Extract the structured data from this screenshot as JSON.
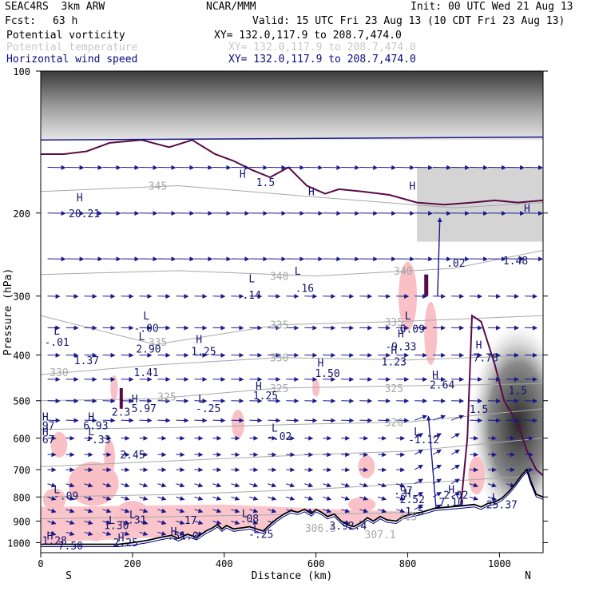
{
  "header": {
    "model": "SEAC4RS  3km ARW",
    "org": "NCAR/MMM",
    "init": "Init: 00 UTC Wed 21 Aug 13",
    "fcst_label": "Fcst:",
    "fcst_value": "63 h",
    "valid": "Valid: 15 UTC Fri 23 Aug 13 (10 CDT Fri 23 Aug 13)"
  },
  "fields": [
    {
      "name": "Potential vorticity",
      "xy": "XY= 132.0,117.9 to 208.7,474.0",
      "color": "#000000"
    },
    {
      "name": "Potential temperature",
      "xy": "XY= 132.0,117.9 to 208.7,474.0",
      "color": "#bdbdbd"
    },
    {
      "name": "Horizontal wind speed",
      "xy": "XY= 132.0,117.9 to 208.7,474.0",
      "color": "#0a0a80"
    }
  ],
  "colors": {
    "pv_shading_pink": "#f9c0c6",
    "pv_contour": "#5a0a4a",
    "theta_contour": "#a8a8a8",
    "wind_vector": "#1a1a8c",
    "terrain": "#000000",
    "tropopause_gray": "#555555"
  },
  "chart_data": {
    "type": "cross-section",
    "xlabel": "Distance (km)",
    "ylabel": "Pressure (hPa)",
    "xlim": [
      0,
      1095
    ],
    "ylim": [
      1050,
      100
    ],
    "y_scale": "log",
    "x_ticks": [
      0,
      200,
      400,
      600,
      800,
      1000
    ],
    "y_ticks": [
      100,
      200,
      300,
      400,
      500,
      600,
      700,
      800,
      900,
      1000
    ],
    "x_end_labels": {
      "left": "S",
      "right": "N"
    },
    "theta_contours": [
      {
        "label": "345",
        "x": 255,
        "p": 175
      },
      {
        "label": "340",
        "x": 520,
        "p": 272
      },
      {
        "label": "340",
        "x": 790,
        "p": 265
      },
      {
        "label": "335",
        "x": 255,
        "p": 375
      },
      {
        "label": "335",
        "x": 520,
        "p": 345
      },
      {
        "label": "335",
        "x": 770,
        "p": 340
      },
      {
        "label": "330",
        "x": 40,
        "p": 435
      },
      {
        "label": "330",
        "x": 520,
        "p": 405
      },
      {
        "label": "325",
        "x": 275,
        "p": 490
      },
      {
        "label": "325",
        "x": 520,
        "p": 470
      },
      {
        "label": "325",
        "x": 770,
        "p": 470
      },
      {
        "label": "320",
        "x": 770,
        "p": 555
      },
      {
        "label": "315",
        "x": 800,
        "p": 880
      },
      {
        "label": "306.5",
        "x": 610,
        "p": 930
      },
      {
        "label": "307.1",
        "x": 740,
        "p": 960
      }
    ],
    "annotations": [
      {
        "text": "H",
        "x": 85,
        "p": 185
      },
      {
        "text": "20.21",
        "x": 95,
        "p": 200
      },
      {
        "text": "L",
        "x": 460,
        "p": 275
      },
      {
        "text": ".14",
        "x": 460,
        "p": 298
      },
      {
        "text": "L",
        "x": 560,
        "p": 265
      },
      {
        "text": ".16",
        "x": 575,
        "p": 288
      },
      {
        "text": "L",
        "x": 230,
        "p": 330
      },
      {
        "text": "-.00",
        "x": 230,
        "p": 350
      },
      {
        "text": "L",
        "x": 35,
        "p": 355
      },
      {
        "text": "-.01",
        "x": 35,
        "p": 375
      },
      {
        "text": "H",
        "x": 345,
        "p": 370
      },
      {
        "text": "1.25",
        "x": 355,
        "p": 392
      },
      {
        "text": "L",
        "x": 220,
        "p": 365
      },
      {
        "text": "2.90",
        "x": 235,
        "p": 388
      },
      {
        "text": "1.37",
        "x": 100,
        "p": 410
      },
      {
        "text": "1.41",
        "x": 230,
        "p": 435
      },
      {
        "text": "H",
        "x": 610,
        "p": 415
      },
      {
        "text": "1.50",
        "x": 625,
        "p": 437
      },
      {
        "text": "H",
        "x": 785,
        "p": 360
      },
      {
        "text": "-9.33",
        "x": 785,
        "p": 383
      },
      {
        "text": "H",
        "x": 770,
        "p": 390
      },
      {
        "text": "1.23",
        "x": 770,
        "p": 413
      },
      {
        "text": "L",
        "x": 800,
        "p": 330
      },
      {
        "text": "6.09",
        "x": 810,
        "p": 352
      },
      {
        "text": "H",
        "x": 955,
        "p": 380
      },
      {
        "text": "7.78",
        "x": 970,
        "p": 405
      },
      {
        "text": "H",
        "x": 860,
        "p": 440
      },
      {
        "text": "2.64",
        "x": 875,
        "p": 462
      },
      {
        "text": "H",
        "x": 475,
        "p": 465
      },
      {
        "text": "1.25",
        "x": 490,
        "p": 487
      },
      {
        "text": "H",
        "x": 205,
        "p": 495
      },
      {
        "text": "5.97",
        "x": 225,
        "p": 518
      },
      {
        "text": "2.3",
        "x": 175,
        "p": 528
      },
      {
        "text": "L",
        "x": 350,
        "p": 495
      },
      {
        "text": "-.25",
        "x": 365,
        "p": 518
      },
      {
        "text": "H",
        "x": 10,
        "p": 540
      },
      {
        "text": ".97",
        "x": 10,
        "p": 564
      },
      {
        "text": "H",
        "x": 110,
        "p": 540
      },
      {
        "text": "6.93",
        "x": 120,
        "p": 564
      },
      {
        "text": "L",
        "x": 510,
        "p": 570
      },
      {
        "text": "-.02",
        "x": 520,
        "p": 594
      },
      {
        "text": "H",
        "x": 10,
        "p": 580
      },
      {
        "text": ".67",
        "x": 10,
        "p": 604
      },
      {
        "text": "L",
        "x": 110,
        "p": 580
      },
      {
        "text": "-.33",
        "x": 125,
        "p": 604
      },
      {
        "text": "L",
        "x": 820,
        "p": 580
      },
      {
        "text": "-1.12",
        "x": 835,
        "p": 604
      },
      {
        "text": "2.45",
        "x": 200,
        "p": 650
      },
      {
        "text": "L",
        "x": 35,
        "p": 770
      },
      {
        "text": "-.09",
        "x": 55,
        "p": 795
      },
      {
        "text": "H",
        "x": 800,
        "p": 785
      },
      {
        "text": ".97",
        "x": 790,
        "p": 775
      },
      {
        "text": "2.52",
        "x": 810,
        "p": 808
      },
      {
        "text": "H",
        "x": 895,
        "p": 770
      },
      {
        "text": "2.02",
        "x": 905,
        "p": 792
      },
      {
        "text": "7.10",
        "x": 895,
        "p": 820
      },
      {
        "text": "L",
        "x": 990,
        "p": 800
      },
      {
        "text": "25.37",
        "x": 1005,
        "p": 830
      },
      {
        "text": "1.5",
        "x": 815,
        "p": 858
      },
      {
        "text": "L",
        "x": 445,
        "p": 865
      },
      {
        "text": ".08",
        "x": 455,
        "p": 888
      },
      {
        "text": "L",
        "x": 200,
        "p": 870
      },
      {
        "text": ".31",
        "x": 210,
        "p": 893
      },
      {
        "text": "L",
        "x": 155,
        "p": 895
      },
      {
        "text": "1.30",
        "x": 165,
        "p": 918
      },
      {
        "text": ".17",
        "x": 320,
        "p": 895
      },
      {
        "text": "3.92.4",
        "x": 670,
        "p": 920
      },
      {
        "text": "L",
        "x": 470,
        "p": 935
      },
      {
        "text": "-.25",
        "x": 480,
        "p": 958
      },
      {
        "text": "H",
        "x": 290,
        "p": 945
      },
      {
        "text": ".51.0",
        "x": 310,
        "p": 965
      },
      {
        "text": "H",
        "x": 20,
        "p": 965
      },
      {
        "text": "1.28",
        "x": 30,
        "p": 988
      },
      {
        "text": "H",
        "x": 175,
        "p": 975
      },
      {
        "text": "2.25",
        "x": 185,
        "p": 998
      },
      {
        "text": "7.50",
        "x": 65,
        "p": 1013
      },
      {
        "text": "H",
        "x": 440,
        "p": 165
      },
      {
        "text": "1.5",
        "x": 490,
        "p": 172
      },
      {
        "text": "H",
        "x": 590,
        "p": 180
      },
      {
        "text": "H",
        "x": 810,
        "p": 175
      },
      {
        "text": "H",
        "x": 1060,
        "p": 195
      },
      {
        "text": ".02",
        "x": 905,
        "p": 255
      },
      {
        "text": "1.48",
        "x": 1035,
        "p": 252
      },
      {
        "text": "1.5",
        "x": 1040,
        "p": 475
      },
      {
        "text": "1.5",
        "x": 955,
        "p": 520
      }
    ]
  }
}
